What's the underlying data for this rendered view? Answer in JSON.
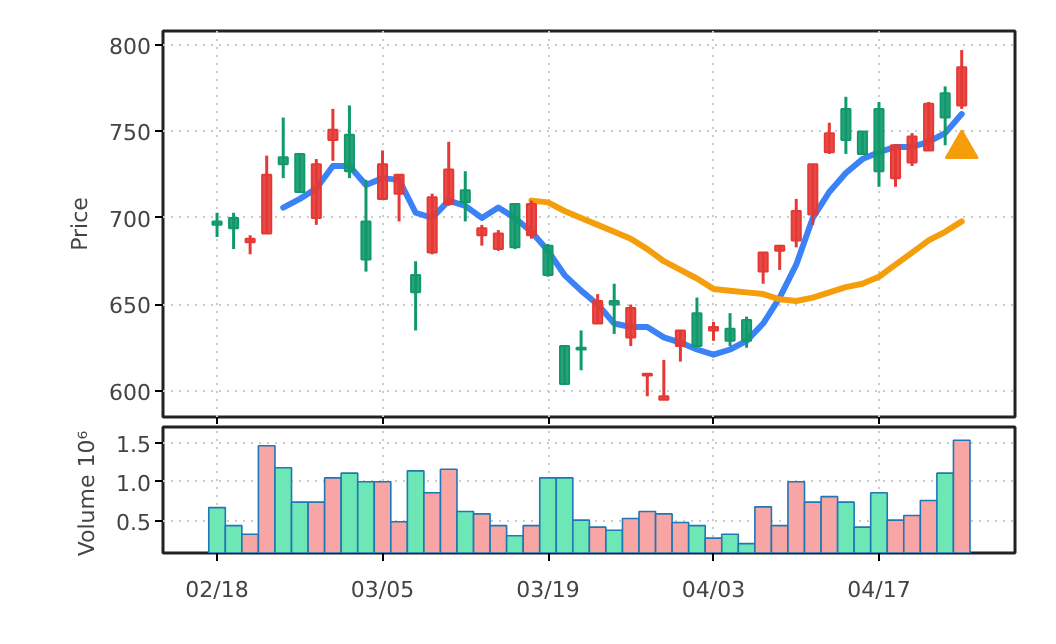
{
  "chart_data": [
    {
      "type": "candlestick",
      "ylabel": "Price",
      "categories": [
        null,
        null,
        null,
        null,
        null,
        null,
        null,
        null,
        null,
        null,
        null,
        null,
        null,
        null,
        null,
        null,
        null,
        null,
        null,
        null,
        null,
        null,
        null,
        null,
        null,
        null,
        null,
        null,
        null,
        null,
        null,
        null,
        null,
        null,
        null,
        null,
        null,
        null,
        null,
        null,
        null,
        null,
        null,
        null,
        null,
        null
      ],
      "ohlc": [
        [
          696,
          703,
          689,
          698
        ],
        [
          694,
          703,
          682,
          700
        ],
        [
          688,
          690,
          679,
          686
        ],
        [
          725,
          736,
          691,
          691
        ],
        [
          731,
          758,
          723,
          735
        ],
        [
          715,
          737,
          715,
          737
        ],
        [
          731,
          734,
          696,
          700
        ],
        [
          751,
          763,
          733,
          745
        ],
        [
          727,
          765,
          723,
          748
        ],
        [
          676,
          722,
          669,
          698
        ],
        [
          731,
          739,
          711,
          711
        ],
        [
          725,
          725,
          698,
          714
        ],
        [
          657,
          675,
          635,
          667
        ],
        [
          712,
          714,
          679,
          680
        ],
        [
          728,
          744,
          707,
          708
        ],
        [
          709,
          727,
          698,
          716
        ],
        [
          694,
          696,
          684,
          690
        ],
        [
          691,
          693,
          681,
          682
        ],
        [
          683,
          708,
          682,
          708
        ],
        [
          708,
          710,
          688,
          690
        ],
        [
          667,
          685,
          666,
          684
        ],
        [
          604,
          626,
          604,
          626
        ],
        [
          624,
          635,
          612,
          625
        ],
        [
          652,
          656,
          639,
          639
        ],
        [
          650,
          662,
          633,
          652
        ],
        [
          648,
          650,
          626,
          631
        ],
        [
          610,
          610,
          597,
          609
        ],
        [
          597,
          618,
          595,
          595
        ],
        [
          635,
          635,
          617,
          626
        ],
        [
          626,
          654,
          626,
          645
        ],
        [
          637,
          640,
          629,
          635
        ],
        [
          629,
          645,
          626,
          636
        ],
        [
          629,
          643,
          625,
          641
        ],
        [
          680,
          680,
          662,
          669
        ],
        [
          684,
          684,
          670,
          681
        ],
        [
          704,
          711,
          683,
          687
        ],
        [
          731,
          731,
          696,
          702
        ],
        [
          749,
          755,
          737,
          738
        ],
        [
          745,
          770,
          737,
          763
        ],
        [
          737,
          750,
          737,
          750
        ],
        [
          727,
          767,
          718,
          763
        ],
        [
          742,
          742,
          718,
          723
        ],
        [
          747,
          749,
          730,
          732
        ],
        [
          766,
          767,
          739,
          739
        ],
        [
          758,
          776,
          742,
          772
        ],
        [
          787,
          797,
          763,
          765
        ]
      ],
      "colors": [
        "#12996b",
        "#12996b",
        "#e53935",
        "#e53935",
        "#12996b",
        "#12996b",
        "#e53935",
        "#e53935",
        "#12996b",
        "#12996b",
        "#e53935",
        "#e53935",
        "#12996b",
        "#e53935",
        "#e53935",
        "#12996b",
        "#e53935",
        "#e53935",
        "#12996b",
        "#e53935",
        "#12996b",
        "#12996b",
        "#12996b",
        "#e53935",
        "#12996b",
        "#e53935",
        "#e53935",
        "#e53935",
        "#e53935",
        "#12996b",
        "#e53935",
        "#12996b",
        "#12996b",
        "#e53935",
        "#e53935",
        "#e53935",
        "#e53935",
        "#e53935",
        "#12996b",
        "#12996b",
        "#12996b",
        "#e53935",
        "#e53935",
        "#e53935",
        "#12996b",
        "#e53935"
      ],
      "series": [
        {
          "type": "line",
          "color": "#3b82f6",
          "values": [
            null,
            null,
            null,
            null,
            706,
            711,
            717,
            730,
            730,
            719,
            723,
            722,
            703,
            700,
            710,
            707,
            700,
            706,
            700,
            692,
            681,
            667,
            658,
            650,
            639,
            637,
            637,
            631,
            628,
            624,
            621,
            624,
            629,
            639,
            654,
            673,
            700,
            715,
            726,
            734,
            738,
            741,
            741,
            744,
            749,
            760
          ]
        },
        {
          "type": "line",
          "color": "#f59e0b",
          "values": [
            null,
            null,
            null,
            null,
            null,
            null,
            null,
            null,
            null,
            null,
            null,
            null,
            null,
            null,
            null,
            null,
            null,
            null,
            null,
            710,
            709,
            704,
            700,
            696,
            692,
            688,
            682,
            675,
            670,
            665,
            659,
            658,
            657,
            656,
            653,
            652,
            654,
            657,
            660,
            662,
            666,
            673,
            680,
            687,
            692,
            698
          ]
        },
        {
          "type": "scatter",
          "marker": "triangle",
          "color": "#f59e0b",
          "values": [
            null,
            null,
            null,
            null,
            null,
            null,
            null,
            null,
            null,
            null,
            null,
            null,
            null,
            null,
            null,
            null,
            null,
            null,
            null,
            null,
            null,
            null,
            null,
            null,
            null,
            null,
            null,
            null,
            null,
            null,
            null,
            null,
            null,
            null,
            null,
            null,
            null,
            null,
            null,
            null,
            null,
            null,
            null,
            null,
            null,
            740
          ]
        }
      ],
      "ylim": [
        585,
        808
      ],
      "yticks": [
        600,
        650,
        700,
        750,
        800
      ],
      "grid": true,
      "tick_labels": "y"
    },
    {
      "type": "bar",
      "ylabel": "Volume  10⁶",
      "categories": [
        "02/18",
        null,
        null,
        null,
        null,
        null,
        null,
        null,
        null,
        null,
        "03/05",
        null,
        null,
        null,
        null,
        null,
        null,
        null,
        null,
        null,
        "03/19",
        null,
        null,
        null,
        null,
        null,
        null,
        null,
        null,
        null,
        "04/03",
        null,
        null,
        null,
        null,
        null,
        null,
        null,
        null,
        null,
        "04/17",
        null,
        null,
        null,
        null,
        null
      ],
      "values": [
        0.67,
        0.44,
        0.33,
        1.46,
        1.18,
        0.74,
        0.74,
        1.05,
        1.11,
        1.0,
        1.0,
        0.49,
        1.14,
        0.86,
        1.16,
        0.62,
        0.59,
        0.44,
        0.31,
        0.44,
        1.05,
        1.05,
        0.51,
        0.42,
        0.38,
        0.53,
        0.62,
        0.59,
        0.48,
        0.44,
        0.28,
        0.33,
        0.21,
        0.68,
        0.44,
        1.0,
        0.74,
        0.81,
        0.74,
        0.42,
        0.86,
        0.51,
        0.57,
        0.76,
        1.11,
        1.53
      ],
      "colors": [
        "#6ee7b7",
        "#6ee7b7",
        "#f8a5a5",
        "#f8a5a5",
        "#6ee7b7",
        "#6ee7b7",
        "#f8a5a5",
        "#f8a5a5",
        "#6ee7b7",
        "#6ee7b7",
        "#f8a5a5",
        "#f8a5a5",
        "#6ee7b7",
        "#f8a5a5",
        "#f8a5a5",
        "#6ee7b7",
        "#f8a5a5",
        "#f8a5a5",
        "#6ee7b7",
        "#f8a5a5",
        "#6ee7b7",
        "#6ee7b7",
        "#6ee7b7",
        "#f8a5a5",
        "#6ee7b7",
        "#f8a5a5",
        "#f8a5a5",
        "#f8a5a5",
        "#f8a5a5",
        "#6ee7b7",
        "#f8a5a5",
        "#6ee7b7",
        "#6ee7b7",
        "#f8a5a5",
        "#f8a5a5",
        "#f8a5a5",
        "#f8a5a5",
        "#f8a5a5",
        "#6ee7b7",
        "#6ee7b7",
        "#6ee7b7",
        "#f8a5a5",
        "#f8a5a5",
        "#f8a5a5",
        "#6ee7b7",
        "#f8a5a5"
      ],
      "ylim": [
        0.09,
        1.7
      ],
      "yticks": [
        0.5,
        {
          "value": 1.0,
          "label": "1.0"
        },
        1.5
      ],
      "grid": true
    }
  ]
}
